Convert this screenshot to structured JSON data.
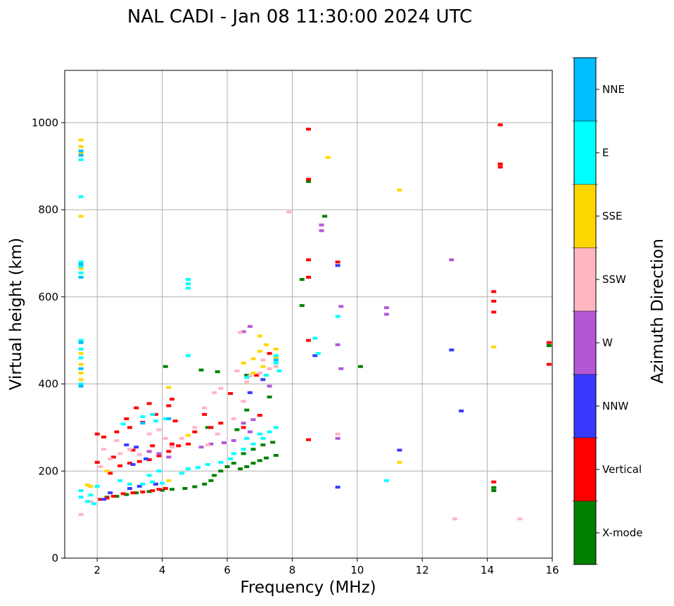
{
  "chart_data": {
    "type": "scatter",
    "title": "NAL CADI - Jan 08 11:30:00 2024 UTC",
    "xlabel": "Frequency (MHz)",
    "ylabel": "Virtual height (km)",
    "xlim": [
      1,
      16
    ],
    "ylim": [
      0,
      1120
    ],
    "xticks": [
      2,
      4,
      6,
      8,
      10,
      12,
      14,
      16
    ],
    "yticks": [
      0,
      200,
      400,
      600,
      800,
      1000
    ],
    "grid": true,
    "colorbar": {
      "label": "Azimuth Direction",
      "categories": [
        "X-mode",
        "Vertical",
        "NNW",
        "W",
        "SSW",
        "SSE",
        "E",
        "NNE"
      ],
      "colors": [
        "#008000",
        "#ff0000",
        "#3a3aff",
        "#b457d6",
        "#ffb6c1",
        "#ffd700",
        "#00ffff",
        "#00bfff"
      ]
    },
    "series": [
      {
        "name": "X-mode",
        "color": "#008000",
        "points": [
          [
            2.3,
            140
          ],
          [
            2.6,
            142
          ],
          [
            2.9,
            146
          ],
          [
            3.2,
            150
          ],
          [
            3.6,
            153
          ],
          [
            4.0,
            156
          ],
          [
            4.3,
            158
          ],
          [
            4.7,
            160
          ],
          [
            5.0,
            164
          ],
          [
            5.3,
            170
          ],
          [
            5.5,
            178
          ],
          [
            5.6,
            190
          ],
          [
            5.8,
            200
          ],
          [
            6.0,
            210
          ],
          [
            6.2,
            218
          ],
          [
            6.4,
            205
          ],
          [
            6.6,
            210
          ],
          [
            6.8,
            218
          ],
          [
            7.0,
            224
          ],
          [
            7.2,
            230
          ],
          [
            7.5,
            236
          ],
          [
            6.5,
            240
          ],
          [
            6.8,
            250
          ],
          [
            7.1,
            260
          ],
          [
            7.4,
            266
          ],
          [
            6.3,
            295
          ],
          [
            6.6,
            340
          ],
          [
            5.4,
            300
          ],
          [
            4.1,
            440
          ],
          [
            5.2,
            432
          ],
          [
            5.7,
            428
          ],
          [
            6.6,
            420
          ],
          [
            7.3,
            370
          ],
          [
            8.3,
            640
          ],
          [
            8.3,
            580
          ],
          [
            8.5,
            865
          ],
          [
            9.0,
            785
          ],
          [
            10.1,
            440
          ],
          [
            14.2,
            155
          ],
          [
            14.2,
            162
          ],
          [
            15.9,
            488
          ]
        ]
      },
      {
        "name": "Vertical",
        "color": "#ff0000",
        "points": [
          [
            2.1,
            135
          ],
          [
            2.3,
            138
          ],
          [
            2.5,
            142
          ],
          [
            2.8,
            148
          ],
          [
            3.1,
            150
          ],
          [
            3.4,
            152
          ],
          [
            3.7,
            155
          ],
          [
            3.9,
            158
          ],
          [
            4.1,
            160
          ],
          [
            3.8,
            170
          ],
          [
            2.4,
            195
          ],
          [
            2.7,
            212
          ],
          [
            3.0,
            218
          ],
          [
            3.3,
            222
          ],
          [
            3.6,
            226
          ],
          [
            3.9,
            235
          ],
          [
            4.2,
            245
          ],
          [
            4.5,
            258
          ],
          [
            4.8,
            262
          ],
          [
            2.0,
            220
          ],
          [
            2.5,
            232
          ],
          [
            3.1,
            248
          ],
          [
            3.7,
            258
          ],
          [
            4.3,
            262
          ],
          [
            2.2,
            278
          ],
          [
            2.6,
            290
          ],
          [
            3.0,
            300
          ],
          [
            3.4,
            312
          ],
          [
            3.8,
            330
          ],
          [
            4.2,
            350
          ],
          [
            2.0,
            285
          ],
          [
            2.9,
            320
          ],
          [
            3.2,
            345
          ],
          [
            3.6,
            355
          ],
          [
            4.4,
            315
          ],
          [
            5.0,
            290
          ],
          [
            5.5,
            300
          ],
          [
            5.3,
            330
          ],
          [
            5.8,
            310
          ],
          [
            6.1,
            378
          ],
          [
            6.5,
            300
          ],
          [
            7.0,
            328
          ],
          [
            6.9,
            420
          ],
          [
            7.3,
            470
          ],
          [
            4.3,
            365
          ],
          [
            8.5,
            985
          ],
          [
            8.5,
            870
          ],
          [
            8.5,
            685
          ],
          [
            8.5,
            645
          ],
          [
            8.5,
            500
          ],
          [
            8.5,
            272
          ],
          [
            9.4,
            680
          ],
          [
            14.2,
            175
          ],
          [
            14.2,
            565
          ],
          [
            14.2,
            590
          ],
          [
            14.2,
            612
          ],
          [
            14.4,
            995
          ],
          [
            14.4,
            905
          ],
          [
            14.4,
            898
          ],
          [
            15.9,
            445
          ],
          [
            15.9,
            495
          ]
        ]
      },
      {
        "name": "NNW",
        "color": "#3a3aff",
        "points": [
          [
            2.2,
            135
          ],
          [
            3.0,
            160
          ],
          [
            3.3,
            165
          ],
          [
            3.8,
            170
          ],
          [
            3.1,
            215
          ],
          [
            3.5,
            228
          ],
          [
            3.2,
            255
          ],
          [
            2.9,
            260
          ],
          [
            2.4,
            150
          ],
          [
            6.7,
            380
          ],
          [
            7.1,
            410
          ],
          [
            8.7,
            465
          ],
          [
            9.4,
            672
          ],
          [
            9.4,
            163
          ],
          [
            11.3,
            248
          ],
          [
            12.9,
            478
          ],
          [
            13.2,
            338
          ]
        ]
      },
      {
        "name": "W",
        "color": "#b457d6",
        "points": [
          [
            3.6,
            245
          ],
          [
            3.9,
            240
          ],
          [
            4.2,
            232
          ],
          [
            5.2,
            255
          ],
          [
            5.5,
            262
          ],
          [
            5.9,
            265
          ],
          [
            6.2,
            270
          ],
          [
            6.7,
            290
          ],
          [
            6.5,
            310
          ],
          [
            6.8,
            318
          ],
          [
            7.3,
            395
          ],
          [
            6.7,
            532
          ],
          [
            6.5,
            520
          ],
          [
            8.9,
            752
          ],
          [
            8.9,
            765
          ],
          [
            9.4,
            490
          ],
          [
            9.5,
            435
          ],
          [
            9.4,
            275
          ],
          [
            9.5,
            578
          ],
          [
            10.9,
            560
          ],
          [
            10.9,
            575
          ],
          [
            12.9,
            685
          ]
        ]
      },
      {
        "name": "SSW",
        "color": "#ffb6c1",
        "points": [
          [
            1.5,
            100
          ],
          [
            1.8,
            130
          ],
          [
            2.1,
            210
          ],
          [
            2.4,
            228
          ],
          [
            2.7,
            240
          ],
          [
            3.0,
            250
          ],
          [
            3.3,
            238
          ],
          [
            2.2,
            250
          ],
          [
            2.6,
            270
          ],
          [
            3.6,
            285
          ],
          [
            3.9,
            295
          ],
          [
            4.1,
            275
          ],
          [
            4.3,
            255
          ],
          [
            4.6,
            275
          ],
          [
            5.0,
            300
          ],
          [
            5.3,
            345
          ],
          [
            5.6,
            380
          ],
          [
            5.8,
            390
          ],
          [
            5.4,
            260
          ],
          [
            5.7,
            285
          ],
          [
            6.2,
            320
          ],
          [
            6.5,
            360
          ],
          [
            6.3,
            430
          ],
          [
            6.7,
            418
          ],
          [
            7.0,
            425
          ],
          [
            7.3,
            435
          ],
          [
            7.5,
            440
          ],
          [
            6.6,
            405
          ],
          [
            7.1,
            455
          ],
          [
            6.4,
            518
          ],
          [
            7.9,
            795
          ],
          [
            9.4,
            285
          ],
          [
            13.0,
            90
          ],
          [
            15.0,
            90
          ]
        ]
      },
      {
        "name": "SSE",
        "color": "#ffd700",
        "points": [
          [
            1.5,
            960
          ],
          [
            1.5,
            945
          ],
          [
            1.5,
            930
          ],
          [
            1.5,
            785
          ],
          [
            1.5,
            665
          ],
          [
            1.5,
            495
          ],
          [
            1.5,
            470
          ],
          [
            1.5,
            445
          ],
          [
            1.5,
            425
          ],
          [
            1.5,
            410
          ],
          [
            1.7,
            168
          ],
          [
            1.8,
            165
          ],
          [
            2.3,
            200
          ],
          [
            4.2,
            178
          ],
          [
            4.2,
            392
          ],
          [
            4.8,
            282
          ],
          [
            6.5,
            448
          ],
          [
            6.8,
            458
          ],
          [
            7.0,
            475
          ],
          [
            7.2,
            490
          ],
          [
            7.5,
            480
          ],
          [
            7.5,
            460
          ],
          [
            7.1,
            440
          ],
          [
            6.8,
            425
          ],
          [
            7.0,
            510
          ],
          [
            9.1,
            920
          ],
          [
            11.3,
            845
          ],
          [
            11.3,
            220
          ],
          [
            14.2,
            485
          ]
        ]
      },
      {
        "name": "E",
        "color": "#00ffff",
        "points": [
          [
            1.5,
            680
          ],
          [
            1.5,
            670
          ],
          [
            1.5,
            655
          ],
          [
            1.5,
            830
          ],
          [
            1.5,
            500
          ],
          [
            1.5,
            480
          ],
          [
            1.5,
            460
          ],
          [
            1.5,
            400
          ],
          [
            1.5,
            915
          ],
          [
            1.5,
            140
          ],
          [
            1.5,
            155
          ],
          [
            1.7,
            130
          ],
          [
            1.8,
            145
          ],
          [
            1.9,
            125
          ],
          [
            2.0,
            165
          ],
          [
            2.7,
            178
          ],
          [
            3.0,
            170
          ],
          [
            3.4,
            170
          ],
          [
            3.7,
            175
          ],
          [
            4.0,
            172
          ],
          [
            3.6,
            190
          ],
          [
            3.9,
            200
          ],
          [
            3.8,
            315
          ],
          [
            4.1,
            320
          ],
          [
            3.7,
            330
          ],
          [
            2.8,
            308
          ],
          [
            3.4,
            325
          ],
          [
            4.8,
            640
          ],
          [
            4.8,
            630
          ],
          [
            4.8,
            620
          ],
          [
            4.8,
            465
          ],
          [
            4.6,
            195
          ],
          [
            4.8,
            205
          ],
          [
            5.1,
            208
          ],
          [
            5.4,
            215
          ],
          [
            5.8,
            220
          ],
          [
            6.1,
            228
          ],
          [
            6.2,
            240
          ],
          [
            6.5,
            250
          ],
          [
            6.8,
            262
          ],
          [
            7.1,
            275
          ],
          [
            7.3,
            290
          ],
          [
            7.5,
            300
          ],
          [
            6.6,
            275
          ],
          [
            7.0,
            285
          ],
          [
            6.6,
            415
          ],
          [
            7.2,
            420
          ],
          [
            7.6,
            430
          ],
          [
            7.5,
            448
          ],
          [
            7.5,
            465
          ],
          [
            8.7,
            505
          ],
          [
            8.8,
            470
          ],
          [
            9.4,
            555
          ],
          [
            10.9,
            178
          ]
        ]
      },
      {
        "name": "NNE",
        "color": "#00bfff",
        "points": [
          [
            1.5,
            935
          ],
          [
            1.5,
            925
          ],
          [
            1.5,
            675
          ],
          [
            1.5,
            645
          ],
          [
            1.5,
            495
          ],
          [
            1.5,
            435
          ],
          [
            1.5,
            395
          ],
          [
            3.4,
            310
          ],
          [
            4.2,
            320
          ],
          [
            7.5,
            455
          ]
        ]
      }
    ]
  }
}
